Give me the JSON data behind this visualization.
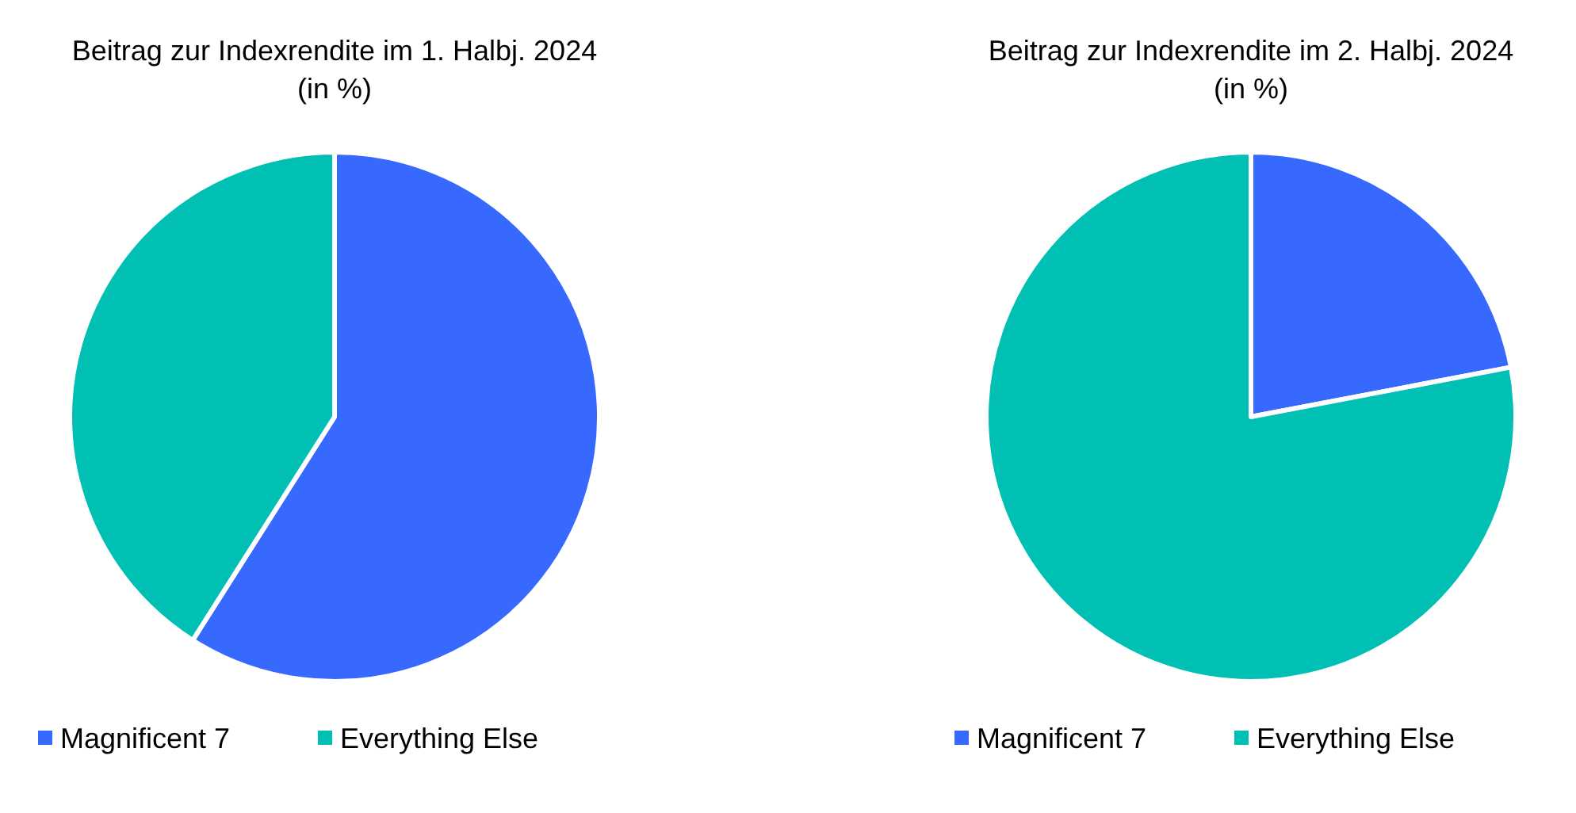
{
  "chart_data": [
    {
      "type": "pie",
      "title": "Beitrag zur Indexrendite im 1. Halbj. 2024\n(in %)",
      "categories": [
        "Magnificent 7",
        "Everything Else"
      ],
      "values": [
        59,
        41
      ],
      "colors": [
        "#3769ff",
        "#00bfb3"
      ],
      "legend": "bottom"
    },
    {
      "type": "pie",
      "title": "Beitrag zur Indexrendite im 2. Halbj. 2024\n(in %)",
      "categories": [
        "Magnificent 7",
        "Everything Else"
      ],
      "values": [
        22,
        78
      ],
      "colors": [
        "#3769ff",
        "#00bfb3"
      ],
      "legend": "bottom"
    }
  ]
}
